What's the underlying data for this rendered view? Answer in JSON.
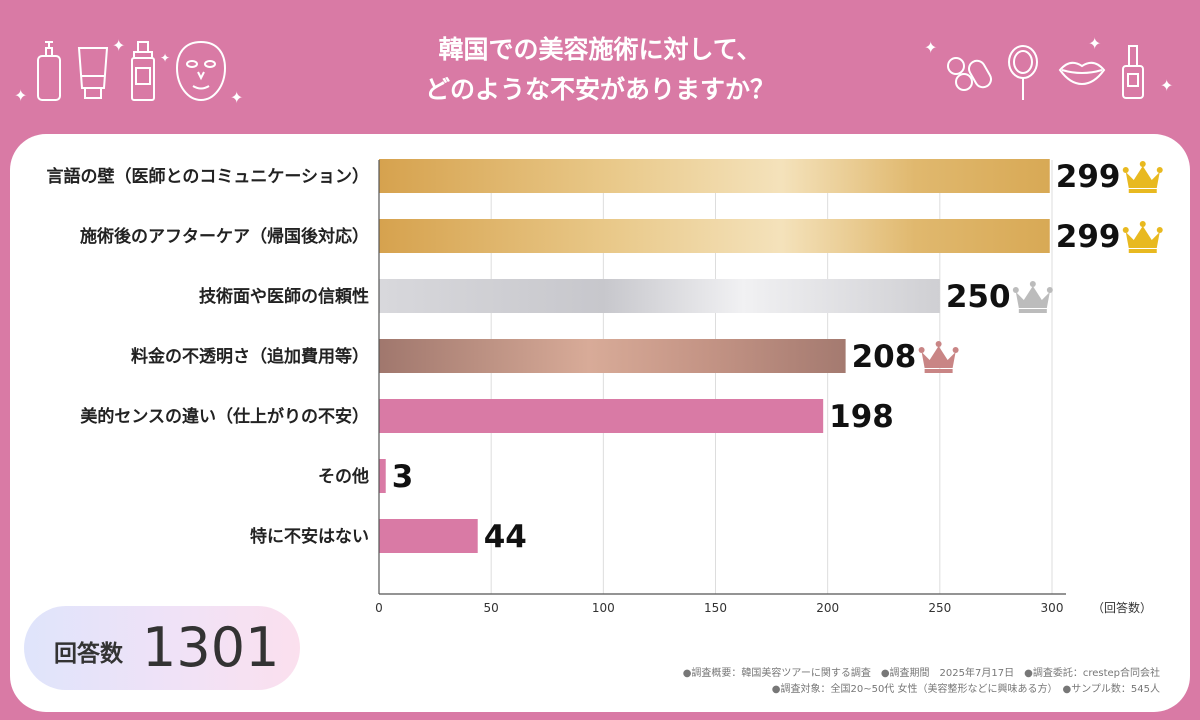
{
  "header": {
    "title_line1": "韓国での美容施術に対して、",
    "title_line2": "どのような不安がありますか？",
    "left_icons": [
      "lotion-bottle-icon",
      "tube-icon",
      "spray-bottle-icon",
      "face-mask-icon"
    ],
    "right_icons": [
      "pill-icon",
      "hand-mirror-icon",
      "lips-icon",
      "nail-polish-icon"
    ]
  },
  "chart_data": {
    "type": "bar",
    "orientation": "horizontal",
    "categories": [
      "言語の壁（医師とのコミュニケーション）",
      "施術後のアフターケア（帰国後対応）",
      "技術面や医師の信頼性",
      "料金の不透明さ（追加費用等）",
      "美的センスの違い（仕上がりの不安）",
      "その他",
      "特に不安はない"
    ],
    "values": [
      299,
      299,
      250,
      208,
      198,
      3,
      44
    ],
    "value_labels": [
      "299",
      "299",
      "250",
      "208",
      "198",
      "3",
      "44"
    ],
    "xlim": [
      0,
      300
    ],
    "xticks": [
      "0",
      "50",
      "100",
      "150",
      "200",
      "250",
      "300"
    ],
    "xunit": "（回答数）",
    "grid": true,
    "bar_colors": [
      "#d7ad5e",
      "#d7ad5e",
      "#cfcfd4",
      "#b98a80",
      "#d97aa5",
      "#d97aa5",
      "#d97aa5"
    ],
    "crowns": [
      "gold",
      "gold",
      "silver",
      "bronze",
      null,
      null,
      null
    ],
    "crown_colors": {
      "gold": "#e8b920",
      "silver": "#bcbcbc",
      "bronze": "#c98585"
    }
  },
  "total": {
    "label": "回答数",
    "value": "1301"
  },
  "footer": {
    "line1": "●調査概要：韓国美容ツアーに関する調査　●調査期間　2025年7月17日　●調査委託：crestep合同会社",
    "line2": "●調査対象：全国20~50代 女性（美容整形などに興味ある方）　●サンプル数：545人"
  }
}
